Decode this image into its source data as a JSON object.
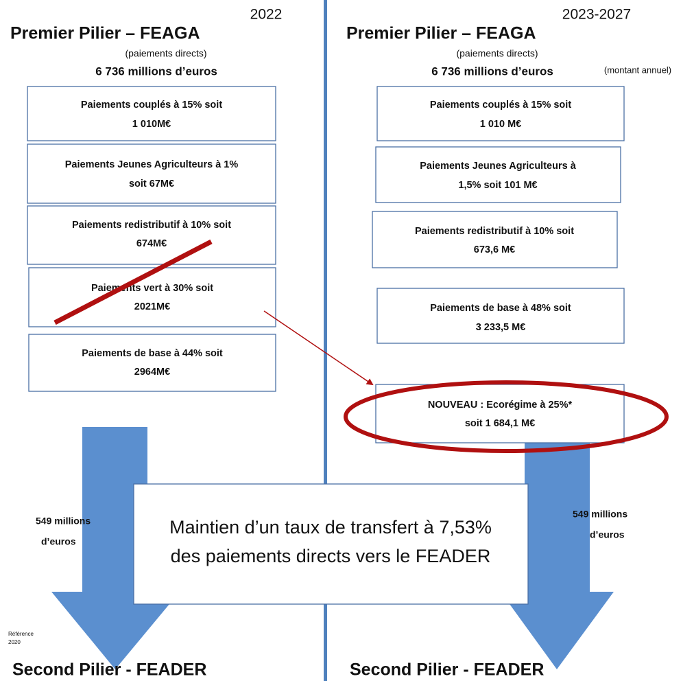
{
  "left": {
    "year": "2022",
    "title": "Premier Pilier – FEAGA",
    "subtitle": "(paiements directs)",
    "amount": "6 736 millions d’euros",
    "boxes": [
      [
        "Paiements couplés à 15% soit",
        "1 010M€"
      ],
      [
        "Paiements Jeunes Agriculteurs à 1%",
        "soit 67M€"
      ],
      [
        "Paiements redistributif à 10% soit",
        "674M€"
      ],
      [
        "Paiements vert à 30% soit",
        "2021M€"
      ],
      [
        "Paiements de base à 44% soit",
        "2964M€"
      ]
    ],
    "transfer": [
      "549 millions",
      "d’euros"
    ],
    "reference": [
      "Référence",
      "2020"
    ],
    "bottom": "Second Pilier - FEADER"
  },
  "right": {
    "year": "2023-2027",
    "title": "Premier Pilier – FEAGA",
    "subtitle": "(paiements directs)",
    "amount": "6 736 millions d’euros",
    "note": "(montant annuel)",
    "boxes": [
      [
        "Paiements couplés à 15% soit",
        "1 010 M€"
      ],
      [
        "Paiements Jeunes Agriculteurs à",
        "1,5% soit 101 M€"
      ],
      [
        "Paiements redistributif à 10% soit",
        "673,6 M€"
      ],
      [
        "Paiements de base à 48% soit",
        "3 233,5 M€"
      ],
      [
        "NOUVEAU : Ecorégime à 25%*",
        "soit 1 684,1 M€"
      ]
    ],
    "transfer": [
      "549 millions",
      "d’euros"
    ],
    "bottom": "Second Pilier - FEADER"
  },
  "center": [
    "Maintien d’un taux de transfert à 7,53%",
    "des paiements directs vers le FEADER"
  ]
}
